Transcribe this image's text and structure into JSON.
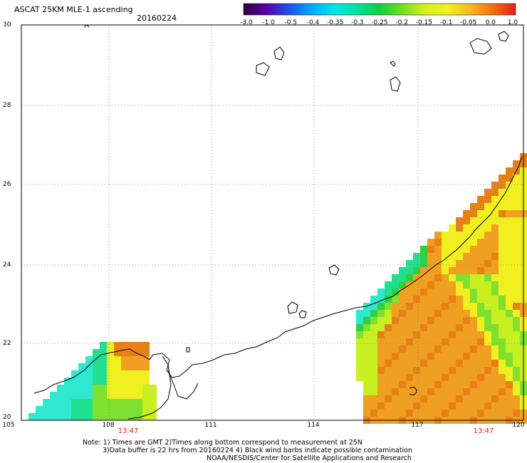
{
  "header": {
    "title": "ASCAT 25KM MLE-1 ascending",
    "date": "20160224"
  },
  "colorbar": {
    "labels": [
      "-3.0",
      "-1.0",
      "-0.5",
      "-0.4",
      "-0.35",
      "-0.3",
      "-0.25",
      "-0.2",
      "-0.15",
      "-0.1",
      "-0.05",
      "0.0",
      "1.0"
    ],
    "colors": [
      "#2a0036",
      "#5b00a8",
      "#2050e8",
      "#00aaff",
      "#00e6e6",
      "#00e0a0",
      "#10d040",
      "#70e020",
      "#d8f020",
      "#f0f020",
      "#f8b820",
      "#f07010",
      "#e02020"
    ]
  },
  "axes": {
    "y_labels": [
      "30",
      "28",
      "26",
      "24",
      "22",
      "20"
    ],
    "x_labels": [
      "105",
      "108",
      "111",
      "114",
      "117",
      "120"
    ]
  },
  "time_labels": [
    "13:47",
    "13:47"
  ],
  "notes": {
    "line1": "Note: 1) Times are GMT 2)Times along bottom correspond to measurement at 25N",
    "line2": "3)Data buffer is 22 hrs from 20160224 4) Black wind barbs indicate possible contamination",
    "line3": "NOAA/NESDIS/Center for Satellite Applications and Research"
  },
  "map": {
    "lon_range": [
      105,
      120
    ],
    "lat_range": [
      20,
      30
    ],
    "grid": true
  }
}
